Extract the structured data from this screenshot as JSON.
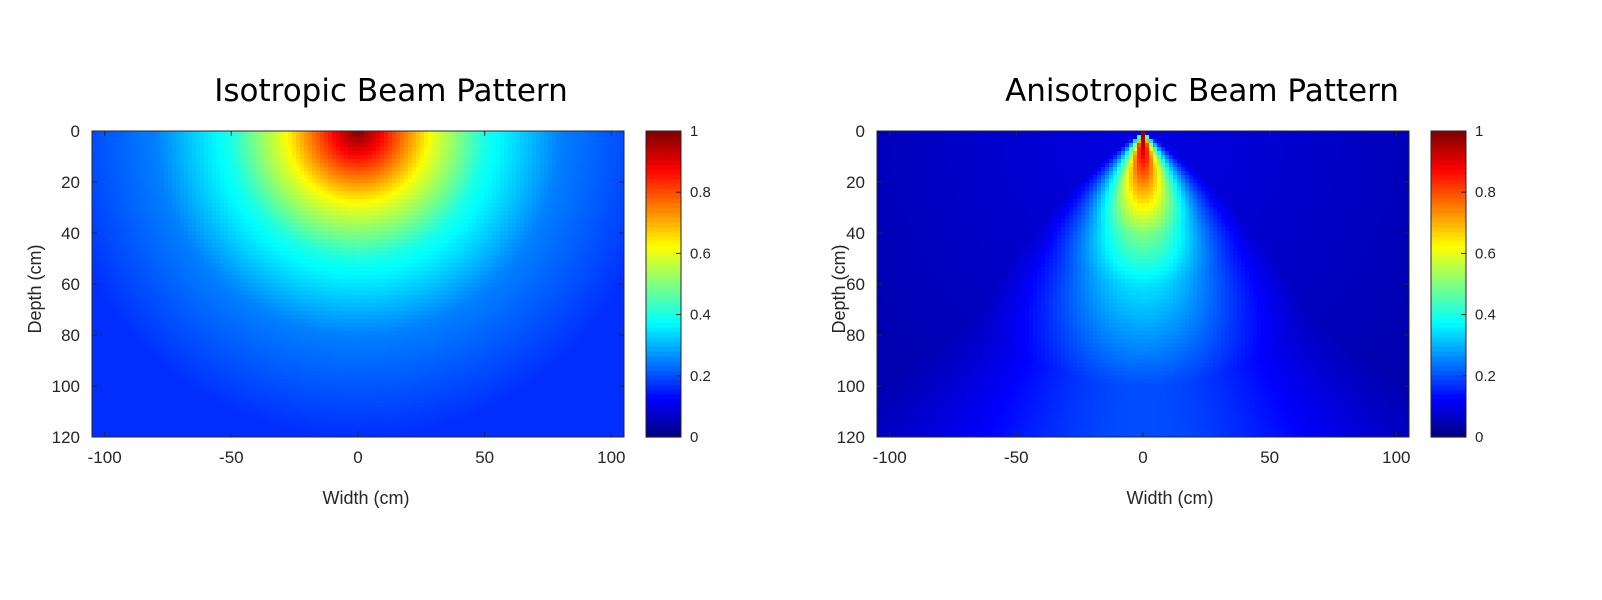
{
  "chart_data": [
    {
      "type": "heatmap",
      "title": "Isotropic Beam Pattern",
      "xlabel": "Width (cm)",
      "ylabel": "Depth (cm)",
      "xlim": [
        -105,
        105
      ],
      "ylim": [
        0,
        120
      ],
      "y_reversed": true,
      "x_ticks": [
        "-100",
        "-50",
        "0",
        "50",
        "100"
      ],
      "x_tick_values": [
        -100,
        -50,
        0,
        50,
        100
      ],
      "y_ticks": [
        "0",
        "20",
        "40",
        "60",
        "80",
        "100",
        "120"
      ],
      "y_tick_values": [
        0,
        20,
        40,
        60,
        80,
        100,
        120
      ],
      "colormap": "jet",
      "clim": [
        0,
        1
      ],
      "colorbar_ticks": [
        "0",
        "0.2",
        "0.4",
        "0.6",
        "0.8",
        "1"
      ],
      "colorbar_tick_values": [
        0,
        0.2,
        0.4,
        0.6,
        0.8,
        1
      ],
      "source": {
        "x": 0,
        "y": 0
      },
      "falloff": {
        "model": "radial",
        "intensity_at_depth_cm": [
          [
            0,
            1.0
          ],
          [
            15,
            0.8
          ],
          [
            30,
            0.6
          ],
          [
            50,
            0.4
          ],
          [
            80,
            0.25
          ],
          [
            120,
            0.17
          ]
        ]
      }
    },
    {
      "type": "heatmap",
      "title": "Anisotropic Beam Pattern",
      "xlabel": "Width (cm)",
      "ylabel": "Depth (cm)",
      "xlim": [
        -105,
        105
      ],
      "ylim": [
        0,
        120
      ],
      "y_reversed": true,
      "x_ticks": [
        "-100",
        "-50",
        "0",
        "50",
        "100"
      ],
      "x_tick_values": [
        -100,
        -50,
        0,
        50,
        100
      ],
      "y_ticks": [
        "0",
        "20",
        "40",
        "60",
        "80",
        "100",
        "120"
      ],
      "y_tick_values": [
        0,
        20,
        40,
        60,
        80,
        100,
        120
      ],
      "colormap": "jet",
      "clim": [
        0,
        1
      ],
      "colorbar_ticks": [
        "0",
        "0.2",
        "0.4",
        "0.6",
        "0.8",
        "1"
      ],
      "colorbar_tick_values": [
        0,
        0.2,
        0.4,
        0.6,
        0.8,
        1
      ],
      "source": {
        "x": 0,
        "y": 0
      },
      "falloff": {
        "model": "directional-lobe",
        "intensity_on_axis_at_depth_cm": [
          [
            5,
            0.95
          ],
          [
            20,
            0.75
          ],
          [
            40,
            0.5
          ],
          [
            60,
            0.35
          ],
          [
            100,
            0.2
          ]
        ],
        "intensity_at_edges": 0.1
      }
    }
  ]
}
